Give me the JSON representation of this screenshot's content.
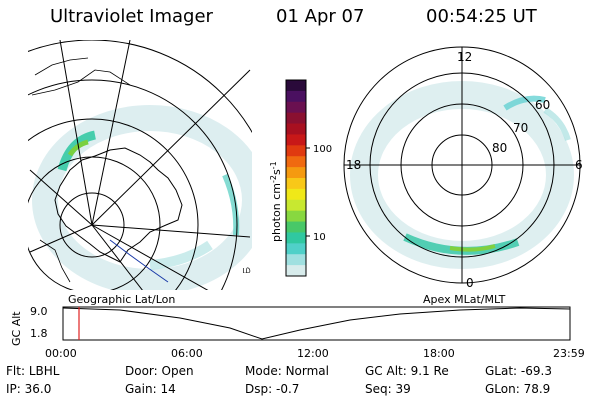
{
  "header": {
    "instrument": "Ultraviolet Imager",
    "date": "01 Apr 07",
    "time": "00:54:25 UT"
  },
  "geo_map": {
    "label": "Geographic Lat/Lon",
    "corner_marker": "ம"
  },
  "colorbar": {
    "unit_label": "photon cm",
    "unit_exp1": "-2",
    "unit_mid": "s",
    "unit_exp2": "-1",
    "tick_labels": [
      "100",
      "10"
    ],
    "colors": [
      "#2a0a3a",
      "#4a1060",
      "#6a1050",
      "#8a1030",
      "#a81020",
      "#c81818",
      "#e03a10",
      "#f06a10",
      "#f59a10",
      "#f8c818",
      "#f0e818",
      "#c8e830",
      "#88d840",
      "#48c868",
      "#30c8a0",
      "#50d0c8",
      "#a0e0e0",
      "#d8ecec"
    ]
  },
  "polar_map": {
    "label": "Apex MLat/MLT",
    "mlt_labels": [
      "12",
      "18",
      "6",
      "0"
    ],
    "mlat_labels": [
      "60",
      "70",
      "80"
    ]
  },
  "altitude_plot": {
    "ylabel": "GC Alt",
    "yticks": [
      "9.0",
      "1.8"
    ],
    "xticks": [
      "00:00",
      "06:00",
      "12:00",
      "18:00",
      "23:59"
    ],
    "marker_color": "#e02020"
  },
  "status": {
    "row1": [
      {
        "label": "Flt:",
        "value": "LBHL"
      },
      {
        "label": "Door:",
        "value": "Open"
      },
      {
        "label": "Mode:",
        "value": "Normal"
      },
      {
        "label": "GC Alt:",
        "value": "9.1 Re"
      },
      {
        "label": "GLat:",
        "value": "-69.3"
      }
    ],
    "row2": [
      {
        "label": "IP:",
        "value": "36.0"
      },
      {
        "label": "Gain:",
        "value": "14"
      },
      {
        "label": "Dsp:",
        "value": "-0.7"
      },
      {
        "label": "Seq:",
        "value": "39"
      },
      {
        "label": "GLon:",
        "value": "78.9"
      }
    ]
  }
}
